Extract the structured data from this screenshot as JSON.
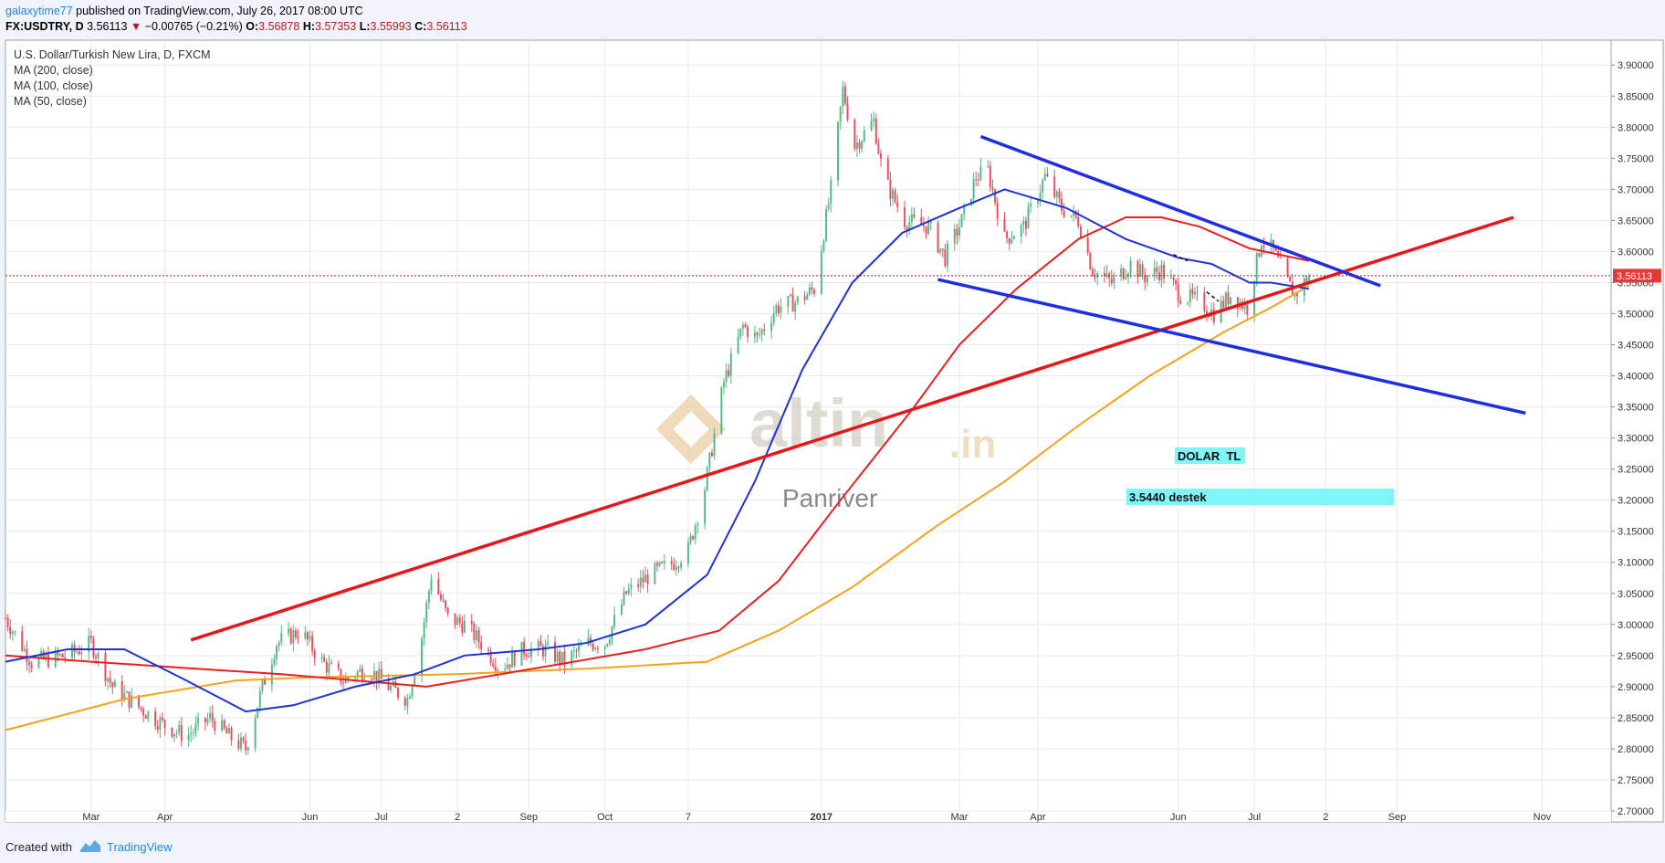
{
  "header": {
    "author": "galaxytime77",
    "published_text": "published on TradingView.com, July 26, 2017 08:00 UTC",
    "symbol": "FX:USDTRY, D",
    "last_price": "3.56113",
    "change": "−0.00765 (−0.21%)",
    "open_label": "O:",
    "open": "3.56878",
    "high_label": "H:",
    "high": "3.57353",
    "low_label": "L:",
    "low": "3.55993",
    "close_label": "C:",
    "close": "3.56113"
  },
  "legend": {
    "instrument": "U.S. Dollar/Turkish New Lira, D, FXCM",
    "ma200": "MA (200, close)",
    "ma100": "MA (100, close)",
    "ma50": "MA (50, close)"
  },
  "watermark": {
    "brand": "altin",
    "tld": ".in",
    "sub": "Panriver"
  },
  "annotations": {
    "dolar_tl": "DOLAR  TL",
    "support": "3.5440 destek"
  },
  "price_tag": "3.56113",
  "footer": {
    "created": "Created with",
    "brand": "TradingView"
  },
  "colors": {
    "up": "#53b987",
    "down": "#eb4d5c",
    "ma200": "#f7a21b",
    "ma100": "#e91e1e",
    "ma50": "#1c33d6",
    "trend_red": "#e8151b",
    "channel_blue": "#1f2ee0",
    "highlight": "#7ef5f7",
    "last_line": "#b71c1c"
  },
  "chart_data": {
    "type": "candlestick",
    "title": "U.S. Dollar/Turkish New Lira, D, FXCM",
    "ylim": [
      2.7,
      3.94
    ],
    "y_ticks": [
      "2.70000",
      "2.75000",
      "2.80000",
      "2.85000",
      "2.90000",
      "2.95000",
      "3.00000",
      "3.05000",
      "3.10000",
      "3.15000",
      "3.20000",
      "3.25000",
      "3.30000",
      "3.35000",
      "3.40000",
      "3.45000",
      "3.50000",
      "3.55000",
      "3.60000",
      "3.65000",
      "3.70000",
      "3.75000",
      "3.80000",
      "3.85000",
      "3.90000"
    ],
    "x_range": [
      "2016-01-25",
      "2017-11-30"
    ],
    "x_ticks": [
      {
        "label": "Mar",
        "date": "2016-03-01"
      },
      {
        "label": "Apr",
        "date": "2016-04-01"
      },
      {
        "label": "Jun",
        "date": "2016-06-01"
      },
      {
        "label": "Jul",
        "date": "2016-07-01"
      },
      {
        "label": "2",
        "date": "2016-08-02"
      },
      {
        "label": "Sep",
        "date": "2016-09-01"
      },
      {
        "label": "Oct",
        "date": "2016-10-03"
      },
      {
        "label": "7",
        "date": "2016-11-07"
      },
      {
        "label": "2017",
        "date": "2017-01-02",
        "bold": true
      },
      {
        "label": "Mar",
        "date": "2017-03-01"
      },
      {
        "label": "Apr",
        "date": "2017-04-03"
      },
      {
        "label": "Jun",
        "date": "2017-06-01"
      },
      {
        "label": "Jul",
        "date": "2017-07-03"
      },
      {
        "label": "2",
        "date": "2017-08-02"
      },
      {
        "label": "Sep",
        "date": "2017-09-01"
      },
      {
        "label": "Nov",
        "date": "2017-11-01"
      }
    ],
    "last_value": 3.56113,
    "close_path": [
      [
        "2016-01-25",
        3.01
      ],
      [
        "2016-02-05",
        2.94
      ],
      [
        "2016-02-20",
        2.95
      ],
      [
        "2016-03-01",
        2.97
      ],
      [
        "2016-03-10",
        2.9
      ],
      [
        "2016-03-20",
        2.87
      ],
      [
        "2016-03-31",
        2.84
      ],
      [
        "2016-04-10",
        2.82
      ],
      [
        "2016-04-20",
        2.85
      ],
      [
        "2016-04-28",
        2.82
      ],
      [
        "2016-05-05",
        2.8
      ],
      [
        "2016-05-12",
        2.9
      ],
      [
        "2016-05-18",
        2.97
      ],
      [
        "2016-05-28",
        2.99
      ],
      [
        "2016-06-06",
        2.94
      ],
      [
        "2016-06-15",
        2.91
      ],
      [
        "2016-06-25",
        2.93
      ],
      [
        "2016-07-04",
        2.9
      ],
      [
        "2016-07-12",
        2.88
      ],
      [
        "2016-07-18",
        2.98
      ],
      [
        "2016-07-22",
        3.08
      ],
      [
        "2016-07-29",
        3.01
      ],
      [
        "2016-08-05",
        3.0
      ],
      [
        "2016-08-12",
        2.97
      ],
      [
        "2016-08-20",
        2.93
      ],
      [
        "2016-08-30",
        2.96
      ],
      [
        "2016-09-08",
        2.96
      ],
      [
        "2016-09-16",
        2.94
      ],
      [
        "2016-09-26",
        2.97
      ],
      [
        "2016-10-03",
        2.97
      ],
      [
        "2016-10-12",
        3.05
      ],
      [
        "2016-10-22",
        3.08
      ],
      [
        "2016-11-01",
        3.1
      ],
      [
        "2016-11-07",
        3.12
      ],
      [
        "2016-11-14",
        3.22
      ],
      [
        "2016-11-22",
        3.39
      ],
      [
        "2016-11-30",
        3.48
      ],
      [
        "2016-12-06",
        3.46
      ],
      [
        "2016-12-14",
        3.51
      ],
      [
        "2016-12-23",
        3.52
      ],
      [
        "2016-12-30",
        3.54
      ],
      [
        "2017-01-06",
        3.7
      ],
      [
        "2017-01-11",
        3.86
      ],
      [
        "2017-01-16",
        3.77
      ],
      [
        "2017-01-24",
        3.81
      ],
      [
        "2017-01-28",
        3.72
      ],
      [
        "2017-02-06",
        3.65
      ],
      [
        "2017-02-16",
        3.64
      ],
      [
        "2017-02-23",
        3.59
      ],
      [
        "2017-03-02",
        3.65
      ],
      [
        "2017-03-08",
        3.72
      ],
      [
        "2017-03-13",
        3.73
      ],
      [
        "2017-03-20",
        3.62
      ],
      [
        "2017-03-28",
        3.64
      ],
      [
        "2017-04-06",
        3.72
      ],
      [
        "2017-04-13",
        3.67
      ],
      [
        "2017-04-20",
        3.65
      ],
      [
        "2017-04-26",
        3.57
      ],
      [
        "2017-05-04",
        3.55
      ],
      [
        "2017-05-12",
        3.58
      ],
      [
        "2017-05-18",
        3.56
      ],
      [
        "2017-05-25",
        3.57
      ],
      [
        "2017-06-02",
        3.53
      ],
      [
        "2017-06-10",
        3.52
      ],
      [
        "2017-06-16",
        3.5
      ],
      [
        "2017-06-23",
        3.53
      ],
      [
        "2017-06-30",
        3.51
      ],
      [
        "2017-07-06",
        3.62
      ],
      [
        "2017-07-11",
        3.6
      ],
      [
        "2017-07-17",
        3.55
      ],
      [
        "2017-07-20",
        3.53
      ],
      [
        "2017-07-26",
        3.56113
      ]
    ],
    "ma_series": [
      {
        "name": "MA (200, close)",
        "color": "#f7a21b",
        "points": [
          [
            "2016-01-25",
            2.83
          ],
          [
            "2016-03-15",
            2.88
          ],
          [
            "2016-05-01",
            2.91
          ],
          [
            "2016-06-01",
            2.915
          ],
          [
            "2016-08-01",
            2.92
          ],
          [
            "2016-10-01",
            2.93
          ],
          [
            "2016-11-15",
            2.94
          ],
          [
            "2016-12-15",
            2.99
          ],
          [
            "2017-01-15",
            3.06
          ],
          [
            "2017-02-20",
            3.16
          ],
          [
            "2017-03-20",
            3.23
          ],
          [
            "2017-04-20",
            3.32
          ],
          [
            "2017-05-20",
            3.4
          ],
          [
            "2017-06-20",
            3.47
          ],
          [
            "2017-07-10",
            3.51
          ],
          [
            "2017-07-26",
            3.545
          ]
        ]
      },
      {
        "name": "MA (100, close)",
        "color": "#e91e1e",
        "points": [
          [
            "2016-01-25",
            2.95
          ],
          [
            "2016-03-01",
            2.94
          ],
          [
            "2016-04-10",
            2.93
          ],
          [
            "2016-05-20",
            2.92
          ],
          [
            "2016-06-20",
            2.91
          ],
          [
            "2016-07-20",
            2.9
          ],
          [
            "2016-08-20",
            2.92
          ],
          [
            "2016-09-20",
            2.94
          ],
          [
            "2016-10-20",
            2.96
          ],
          [
            "2016-11-20",
            2.99
          ],
          [
            "2016-12-15",
            3.07
          ],
          [
            "2017-01-10",
            3.2
          ],
          [
            "2017-02-10",
            3.35
          ],
          [
            "2017-03-01",
            3.45
          ],
          [
            "2017-03-25",
            3.54
          ],
          [
            "2017-04-20",
            3.62
          ],
          [
            "2017-05-10",
            3.655
          ],
          [
            "2017-05-25",
            3.655
          ],
          [
            "2017-06-10",
            3.64
          ],
          [
            "2017-07-01",
            3.605
          ],
          [
            "2017-07-26",
            3.585
          ]
        ]
      },
      {
        "name": "MA (50, close)",
        "color": "#1c33d6",
        "points": [
          [
            "2016-01-25",
            2.94
          ],
          [
            "2016-02-20",
            2.96
          ],
          [
            "2016-03-15",
            2.96
          ],
          [
            "2016-04-10",
            2.91
          ],
          [
            "2016-05-05",
            2.86
          ],
          [
            "2016-05-25",
            2.87
          ],
          [
            "2016-06-20",
            2.9
          ],
          [
            "2016-07-15",
            2.92
          ],
          [
            "2016-08-05",
            2.95
          ],
          [
            "2016-09-05",
            2.96
          ],
          [
            "2016-09-25",
            2.97
          ],
          [
            "2016-10-20",
            3.0
          ],
          [
            "2016-11-15",
            3.08
          ],
          [
            "2016-12-05",
            3.23
          ],
          [
            "2016-12-25",
            3.41
          ],
          [
            "2017-01-15",
            3.55
          ],
          [
            "2017-02-05",
            3.63
          ],
          [
            "2017-03-01",
            3.67
          ],
          [
            "2017-03-20",
            3.7
          ],
          [
            "2017-04-15",
            3.67
          ],
          [
            "2017-05-10",
            3.62
          ],
          [
            "2017-06-01",
            3.59
          ],
          [
            "2017-06-15",
            3.58
          ],
          [
            "2017-07-01",
            3.55
          ],
          [
            "2017-07-10",
            3.55
          ],
          [
            "2017-07-26",
            3.54
          ]
        ]
      }
    ],
    "drawings": [
      {
        "type": "trendline",
        "color": "#e8151b",
        "from": [
          "2016-04-12",
          2.975
        ],
        "to": [
          "2017-10-20",
          3.655
        ]
      },
      {
        "type": "trendline",
        "color": "#1f2ee0",
        "from": [
          "2017-03-10",
          3.785
        ],
        "to": [
          "2017-08-25",
          3.545
        ]
      },
      {
        "type": "trendline",
        "color": "#1f2ee0",
        "from": [
          "2017-02-20",
          3.555
        ],
        "to": [
          "2017-10-25",
          3.34
        ]
      },
      {
        "type": "dashed",
        "color": "#111111",
        "from": [
          "2017-05-30",
          3.595
        ],
        "to": [
          "2017-06-05",
          3.585
        ]
      },
      {
        "type": "dashed",
        "color": "#111111",
        "from": [
          "2017-06-13",
          3.535
        ],
        "to": [
          "2017-06-18",
          3.52
        ]
      }
    ]
  }
}
